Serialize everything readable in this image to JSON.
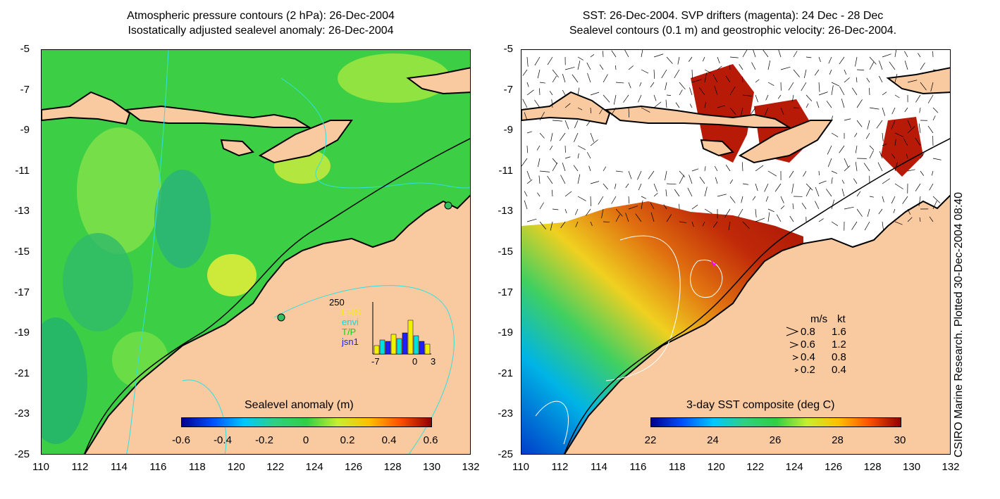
{
  "left": {
    "title_line1": "Atmospheric pressure contours (2 hPa): 26-Dec-2004",
    "title_line2": "Isostatically adjusted sealevel anomaly: 26-Dec-2004",
    "colorbar": {
      "label": "Sealevel anomaly (m)",
      "ticks": [
        "-0.6",
        "-0.4",
        "-0.2",
        "0",
        "0.2",
        "0.4",
        "0.6"
      ]
    },
    "inset": {
      "ymax": "250",
      "series": [
        "ERS",
        "envi",
        "T/P",
        "jsn1"
      ],
      "xticks": [
        "-7",
        "0",
        "3"
      ],
      "series_colors": [
        "#f2f200",
        "#00e0e0",
        "#00e000",
        "#2020ff"
      ]
    }
  },
  "right": {
    "title_line1": "SST: 26-Dec-2004. SVP drifters (magenta): 24 Dec - 28 Dec",
    "title_line2": "Sealevel contours (0.1 m) and geostrophic velocity: 26-Dec-2004.",
    "colorbar": {
      "label": "3-day SST composite (deg C)",
      "ticks": [
        "22",
        "24",
        "26",
        "28",
        "30"
      ]
    },
    "velocity_legend": {
      "header_ms": "m/s",
      "header_kt": "kt",
      "rows": [
        {
          "ms": "0.8",
          "kt": "1.6"
        },
        {
          "ms": "0.6",
          "kt": "1.2"
        },
        {
          "ms": "0.4",
          "kt": "0.8"
        },
        {
          "ms": "0.2",
          "kt": "0.4"
        }
      ]
    }
  },
  "axes": {
    "lat_ticks": [
      "-5",
      "-7",
      "-9",
      "-11",
      "-13",
      "-15",
      "-17",
      "-19",
      "-21",
      "-23",
      "-25"
    ],
    "lon_ticks": [
      "110",
      "112",
      "114",
      "116",
      "118",
      "120",
      "122",
      "124",
      "126",
      "128",
      "130",
      "132"
    ]
  },
  "credit": "CSIRO Marine Research. Plotted 30-Dec-2004 08:40",
  "colors": {
    "land": "#f9c9a0",
    "ocean_mid": "#3bd24a",
    "sst_warm": "#b81a08",
    "cloud": "#ffffff"
  }
}
